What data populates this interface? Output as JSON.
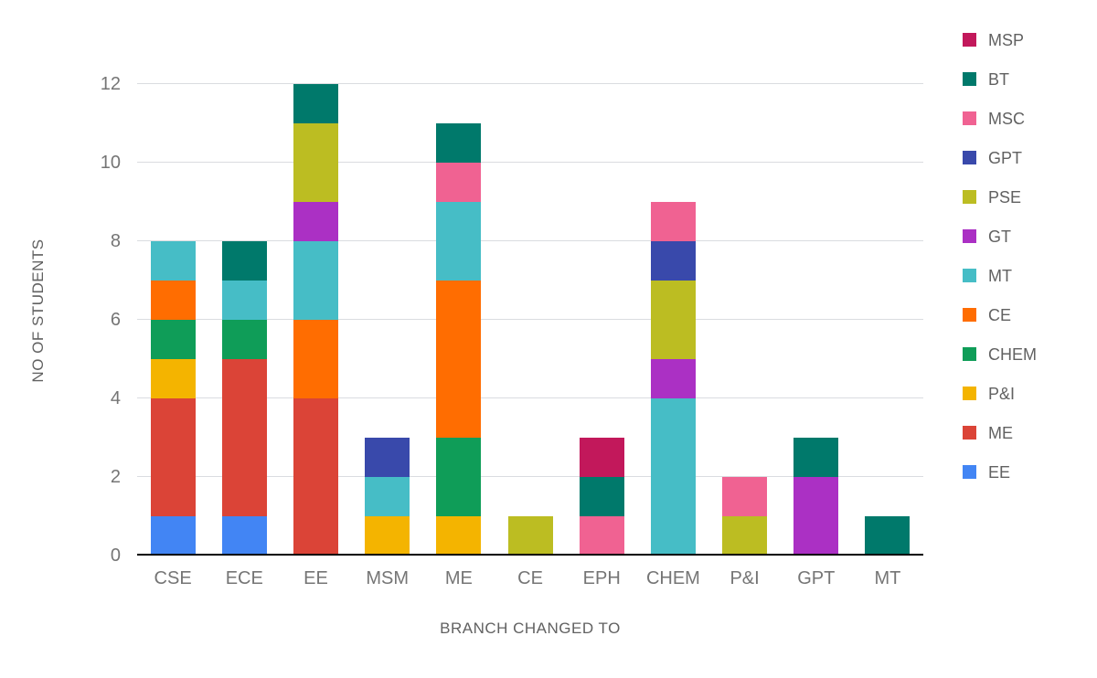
{
  "page": {
    "background": "#ffffff"
  },
  "colors": {
    "gridline": "#dadce0",
    "axis_line": "#000000",
    "tick_text": "#757575",
    "title_text": "#616161"
  },
  "chart_data": {
    "type": "bar",
    "stacked": true,
    "title": "",
    "xlabel": "BRANCH CHANGED TO",
    "ylabel": "NO OF STUDENTS",
    "ylim": [
      0,
      12
    ],
    "yticks": [
      0,
      2,
      4,
      6,
      8,
      10,
      12
    ],
    "grid": "horizontal",
    "legend_position": "right",
    "legend_order": [
      "MSP",
      "BT",
      "MSC",
      "GPT",
      "PSE",
      "GT",
      "MT",
      "CE",
      "CHEM",
      "P&I",
      "ME",
      "EE"
    ],
    "categories": [
      "CSE",
      "ECE",
      "EE",
      "MSM",
      "ME",
      "CE",
      "EPH",
      "CHEM",
      "P&I",
      "GPT",
      "MT"
    ],
    "series": [
      {
        "name": "EE",
        "color": "#4285f4",
        "values": [
          1,
          1,
          0,
          0,
          0,
          0,
          0,
          0,
          0,
          0,
          0
        ]
      },
      {
        "name": "ME",
        "color": "#db4437",
        "values": [
          3,
          4,
          4,
          0,
          0,
          0,
          0,
          0,
          0,
          0,
          0
        ]
      },
      {
        "name": "P&I",
        "color": "#f4b400",
        "values": [
          1,
          0,
          0,
          1,
          1,
          0,
          0,
          0,
          0,
          0,
          0
        ]
      },
      {
        "name": "CHEM",
        "color": "#0f9d58",
        "values": [
          1,
          1,
          0,
          0,
          2,
          0,
          0,
          0,
          0,
          0,
          0
        ]
      },
      {
        "name": "CE",
        "color": "#ff6d01",
        "values": [
          1,
          0,
          2,
          0,
          4,
          0,
          0,
          0,
          0,
          0,
          0
        ]
      },
      {
        "name": "MT",
        "color": "#46bdc6",
        "values": [
          1,
          1,
          2,
          1,
          2,
          0,
          0,
          4,
          0,
          0,
          0
        ]
      },
      {
        "name": "GT",
        "color": "#ab30c4",
        "values": [
          0,
          0,
          1,
          0,
          0,
          0,
          0,
          1,
          0,
          2,
          0
        ]
      },
      {
        "name": "PSE",
        "color": "#bcbd22",
        "values": [
          0,
          0,
          2,
          0,
          0,
          1,
          0,
          2,
          1,
          0,
          0
        ]
      },
      {
        "name": "GPT",
        "color": "#3949ab",
        "values": [
          0,
          0,
          0,
          1,
          0,
          0,
          0,
          1,
          0,
          0,
          0
        ]
      },
      {
        "name": "MSC",
        "color": "#f06292",
        "values": [
          0,
          0,
          0,
          0,
          1,
          0,
          1,
          1,
          1,
          0,
          0
        ]
      },
      {
        "name": "BT",
        "color": "#00796b",
        "values": [
          0,
          1,
          1,
          0,
          1,
          0,
          1,
          0,
          0,
          1,
          1
        ]
      },
      {
        "name": "MSP",
        "color": "#c2185b",
        "values": [
          0,
          0,
          0,
          0,
          0,
          0,
          1,
          0,
          0,
          0,
          0
        ]
      }
    ],
    "totals": {
      "CSE": 8,
      "ECE": 8,
      "EE": 12,
      "MSM": 3,
      "ME": 11,
      "CE": 1,
      "EPH": 3,
      "CHEM": 9,
      "P&I": 2,
      "GPT": 3,
      "MT": 1
    }
  }
}
